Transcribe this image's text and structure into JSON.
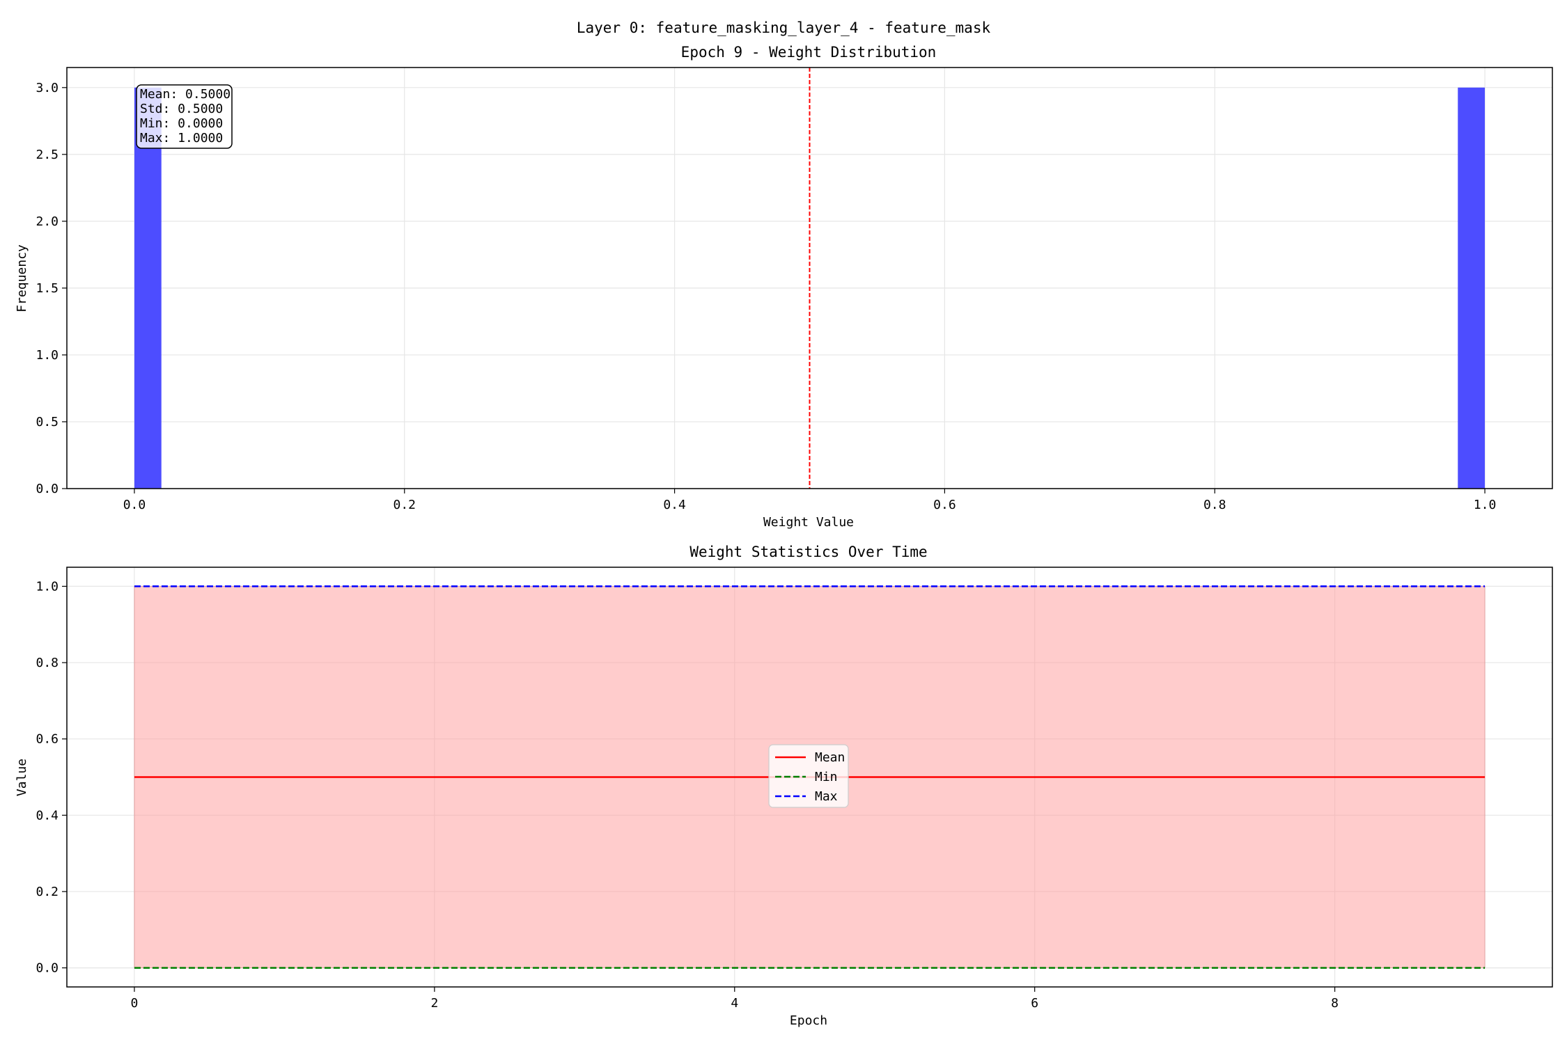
{
  "figure": {
    "suptitle": "Layer 0: feature_masking_layer_4 - feature_mask"
  },
  "chart_data": [
    {
      "type": "bar",
      "subtype": "histogram",
      "title": "Epoch 9 - Weight Distribution",
      "xlabel": "Weight Value",
      "ylabel": "Frequency",
      "xlim": [
        -0.05,
        1.05
      ],
      "ylim": [
        0,
        3.15
      ],
      "xticks": [
        0.0,
        0.2,
        0.4,
        0.6,
        0.8,
        1.0
      ],
      "xtick_labels": [
        "0.0",
        "0.2",
        "0.4",
        "0.6",
        "0.8",
        "1.0"
      ],
      "yticks": [
        0.0,
        0.5,
        1.0,
        1.5,
        2.0,
        2.5,
        3.0
      ],
      "ytick_labels": [
        "0.0",
        "0.5",
        "1.0",
        "1.5",
        "2.0",
        "2.5",
        "3.0"
      ],
      "grid": true,
      "bar_color": "#4d4dff",
      "bins": [
        {
          "x0": 0.0,
          "x1": 0.02,
          "count": 3
        },
        {
          "x0": 0.98,
          "x1": 1.0,
          "count": 3
        }
      ],
      "mean_line": {
        "x": 0.5,
        "color": "#ff0000",
        "style": "dashed"
      },
      "stats_box": {
        "position": "top-left",
        "lines": [
          "Mean: 0.5000",
          "Std: 0.5000",
          "Min: 0.0000",
          "Max: 1.0000"
        ]
      }
    },
    {
      "type": "line",
      "title": "Weight Statistics Over Time",
      "xlabel": "Epoch",
      "ylabel": "Value",
      "xlim": [
        -0.45,
        9.45
      ],
      "ylim": [
        -0.05,
        1.05
      ],
      "xticks": [
        0,
        2,
        4,
        6,
        8
      ],
      "xtick_labels": [
        "0",
        "2",
        "4",
        "6",
        "8"
      ],
      "yticks": [
        0.0,
        0.2,
        0.4,
        0.6,
        0.8,
        1.0
      ],
      "ytick_labels": [
        "0.0",
        "0.2",
        "0.4",
        "0.6",
        "0.8",
        "1.0"
      ],
      "grid": true,
      "x": [
        0,
        1,
        2,
        3,
        4,
        5,
        6,
        7,
        8,
        9
      ],
      "series": [
        {
          "name": "Mean",
          "values": [
            0.5,
            0.5,
            0.5,
            0.5,
            0.5,
            0.5,
            0.5,
            0.5,
            0.5,
            0.5
          ],
          "color": "#ff0000",
          "style": "solid"
        },
        {
          "name": "Min",
          "values": [
            0,
            0,
            0,
            0,
            0,
            0,
            0,
            0,
            0,
            0
          ],
          "color": "#008000",
          "style": "dashed"
        },
        {
          "name": "Max",
          "values": [
            1,
            1,
            1,
            1,
            1,
            1,
            1,
            1,
            1,
            1
          ],
          "color": "#0000ff",
          "style": "dashed"
        }
      ],
      "band": {
        "lower": "Min",
        "upper": "Max",
        "color": "#ff9999"
      },
      "legend": {
        "placement": "center"
      }
    }
  ]
}
